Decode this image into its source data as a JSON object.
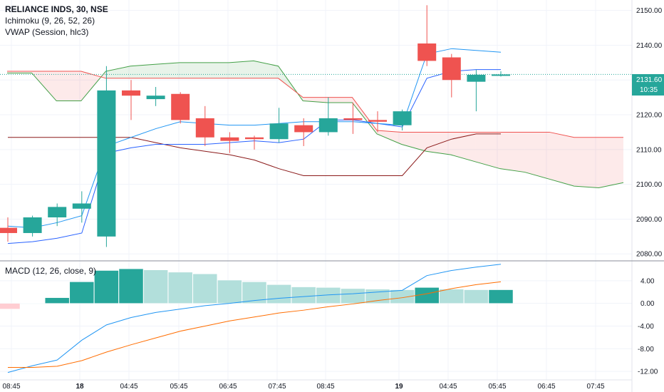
{
  "symbol": "RELIANCE INDS, 30, NSE",
  "indicators": [
    "Ichimoku (9, 26, 52, 26)",
    "VWAP (Session, hlc3)"
  ],
  "macd_label": "MACD (12, 26, close, 9)",
  "last_price": "2131.60",
  "countdown": "10:35",
  "colors": {
    "up": "#26a69a",
    "down": "#ef5350",
    "hist_up_strong": "#26a69a",
    "hist_up_weak": "#b2dfdb",
    "hist_down_weak": "#ffcdd2",
    "macd_line": "#2196f3",
    "signal_line": "#ff6d00",
    "vwap": "#2196f3",
    "conversion": "#2962ff",
    "base": "#8b1a1a",
    "cloud_bull": "#43a047",
    "cloud_bear": "#ef5350"
  },
  "x_ticks": [
    "08:45",
    "18",
    "04:45",
    "05:45",
    "06:45",
    "07:45",
    "08:45",
    "19",
    "04:45",
    "05:45",
    "06:45",
    "07:45"
  ],
  "x_ticks_bold": [
    false,
    true,
    false,
    false,
    false,
    false,
    false,
    true,
    false,
    false,
    false,
    false
  ],
  "chart_data": [
    {
      "type": "candlestick",
      "title": "RELIANCE INDS, 30, NSE",
      "ylim": [
        2078,
        2153
      ],
      "y_ticks": [
        2080.0,
        2090.0,
        2100.0,
        2110.0,
        2120.0,
        2130.0,
        2140.0,
        2150.0
      ],
      "candles": [
        {
          "o": 2087.5,
          "h": 2090.5,
          "l": 2083.5,
          "c": 2086.0
        },
        {
          "o": 2086.0,
          "h": 2091.0,
          "l": 2085.0,
          "c": 2090.5
        },
        {
          "o": 2090.5,
          "h": 2094.5,
          "l": 2088.0,
          "c": 2093.5
        },
        {
          "o": 2093.0,
          "h": 2098.0,
          "l": 2089.0,
          "c": 2094.5
        },
        {
          "o": 2085.0,
          "h": 2134.0,
          "l": 2082.0,
          "c": 2127.0
        },
        {
          "o": 2127.0,
          "h": 2130.0,
          "l": 2118.5,
          "c": 2125.5
        },
        {
          "o": 2124.5,
          "h": 2128.0,
          "l": 2122.5,
          "c": 2125.5
        },
        {
          "o": 2126.0,
          "h": 2126.5,
          "l": 2117.5,
          "c": 2118.5
        },
        {
          "o": 2119.0,
          "h": 2122.5,
          "l": 2111.0,
          "c": 2113.5
        },
        {
          "o": 2113.5,
          "h": 2115.0,
          "l": 2109.0,
          "c": 2112.5
        },
        {
          "o": 2113.5,
          "h": 2114.0,
          "l": 2110.0,
          "c": 2113.0
        },
        {
          "o": 2113.0,
          "h": 2122.0,
          "l": 2112.0,
          "c": 2117.5
        },
        {
          "o": 2117.0,
          "h": 2119.0,
          "l": 2111.0,
          "c": 2115.0
        },
        {
          "o": 2115.0,
          "h": 2125.0,
          "l": 2114.0,
          "c": 2119.0
        },
        {
          "o": 2119.0,
          "h": 2123.5,
          "l": 2114.5,
          "c": 2118.5
        },
        {
          "o": 2118.5,
          "h": 2121.0,
          "l": 2115.0,
          "c": 2118.0
        },
        {
          "o": 2117.0,
          "h": 2121.5,
          "l": 2115.5,
          "c": 2121.0
        },
        {
          "o": 2140.5,
          "h": 2151.5,
          "l": 2134.0,
          "c": 2135.5
        },
        {
          "o": 2136.5,
          "h": 2137.5,
          "l": 2125.0,
          "c": 2130.0
        },
        {
          "o": 2129.5,
          "h": 2133.0,
          "l": 2121.0,
          "c": 2131.5
        },
        {
          "o": 2131.5,
          "h": 2132.5,
          "l": 2131.0,
          "c": 2131.6
        }
      ],
      "vwap": [
        2088.0,
        2087.5,
        2089.0,
        2091.0,
        2111.0,
        2113.5,
        2116.0,
        2118.0,
        2117.5,
        2117.0,
        2117.0,
        2117.5,
        2118.0,
        2118.0,
        2118.0,
        2117.5,
        2117.0,
        2137.5,
        2139.0,
        2138.5,
        2138.0
      ],
      "conversion_line": [
        2083.0,
        2083.5,
        2084.5,
        2086.0,
        2109.0,
        2110.5,
        2111.5,
        2111.5,
        2111.5,
        2112.0,
        2112.5,
        2112.0,
        2113.0,
        2118.5,
        2118.5,
        2117.5,
        2116.5,
        2130.5,
        2132.5,
        2133.0,
        2133.0
      ],
      "base_line": [
        2113.5,
        2113.5,
        2113.5,
        2113.5,
        2113.5,
        2113.5,
        2112.0,
        2110.5,
        2109.5,
        2108.5,
        2107.0,
        2104.5,
        2102.5,
        2102.5,
        2102.5,
        2102.5,
        2102.5,
        2110.5,
        2113.0,
        2114.5,
        2114.5
      ],
      "span_a_x": [
        0,
        1,
        2,
        3,
        4,
        5,
        6,
        7,
        8,
        9,
        10,
        11,
        12,
        13,
        14,
        15,
        16,
        17,
        18,
        19,
        20,
        21,
        22,
        23,
        24,
        25
      ],
      "span_a": [
        2132.0,
        2132.0,
        2124.0,
        2124.0,
        2132.5,
        2134.0,
        2134.5,
        2135.0,
        2135.0,
        2135.0,
        2135.5,
        2134.0,
        2124.0,
        2123.5,
        2123.5,
        2114.5,
        2111.5,
        2109.5,
        2108.5,
        2106.5,
        2104.5,
        2103.5,
        2101.5,
        2099.5,
        2099.0,
        2100.5
      ],
      "span_b": [
        2132.5,
        2132.5,
        2132.5,
        2132.5,
        2130.5,
        2130.5,
        2130.5,
        2130.5,
        2130.5,
        2130.5,
        2130.5,
        2130.5,
        2125.0,
        2125.0,
        2125.0,
        2115.5,
        2115.0,
        2115.0,
        2115.0,
        2115.0,
        2115.0,
        2115.0,
        2115.0,
        2113.5,
        2113.5,
        2113.5
      ]
    },
    {
      "type": "macd",
      "title": "MACD (12, 26, close, 9)",
      "ylim": [
        -13.5,
        7.5
      ],
      "y_ticks": [
        4.0,
        0.0,
        -4.0,
        -8.0,
        -12.0
      ],
      "histogram": [
        -1.0,
        0.0,
        1.0,
        3.8,
        5.8,
        6.1,
        5.9,
        5.5,
        5.2,
        4.1,
        3.8,
        3.3,
        2.9,
        2.8,
        2.6,
        2.5,
        2.4,
        2.8,
        2.5,
        2.4,
        2.4
      ],
      "macd": [
        -12.2,
        -11.0,
        -10.0,
        -6.5,
        -3.8,
        -2.5,
        -1.6,
        -1.0,
        -0.4,
        0.0,
        0.5,
        0.9,
        1.2,
        1.5,
        1.7,
        2.0,
        2.3,
        4.9,
        5.8,
        6.4,
        6.9
      ],
      "signal": [
        -11.3,
        -11.3,
        -11.1,
        -10.1,
        -8.6,
        -7.3,
        -6.1,
        -4.9,
        -4.0,
        -3.1,
        -2.4,
        -1.7,
        -1.2,
        -0.6,
        -0.1,
        0.5,
        1.0,
        1.7,
        2.6,
        3.3,
        3.8
      ]
    }
  ]
}
